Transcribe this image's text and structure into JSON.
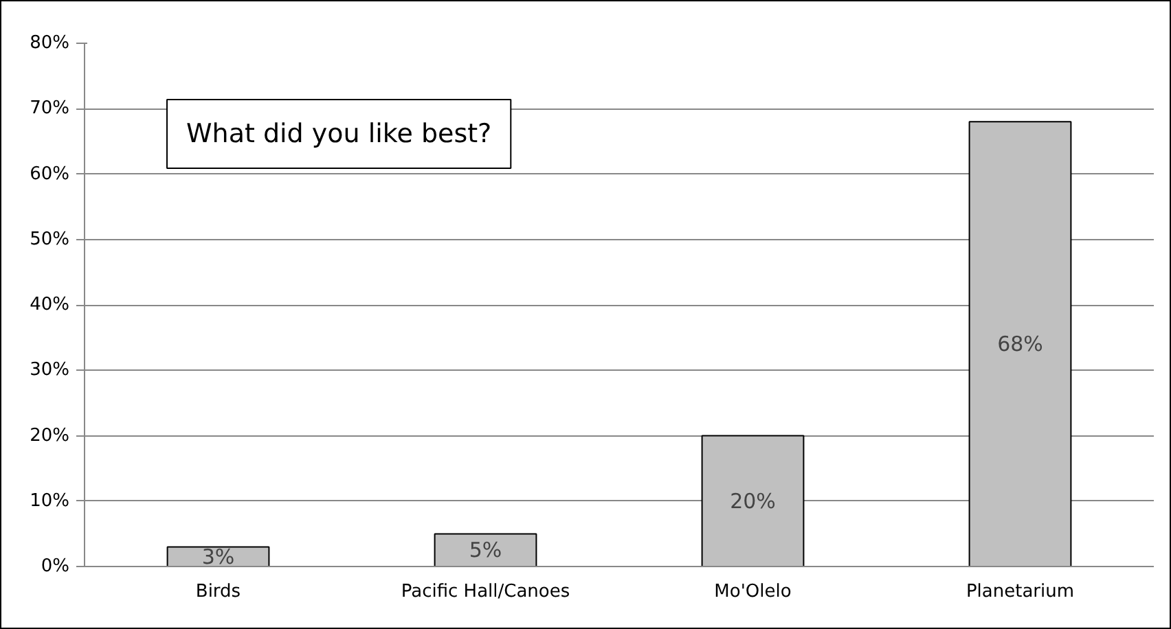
{
  "chart_data": {
    "type": "bar",
    "title": "What did you like best?",
    "categories": [
      "Birds",
      "Pacific Hall/Canoes",
      "Mo'Olelo",
      "Planetarium"
    ],
    "values": [
      3,
      5,
      20,
      68
    ],
    "color": "#c0c0c0",
    "value_labels": [
      "3%",
      "5%",
      "20%",
      "68%"
    ],
    "ylim": [
      0,
      80
    ],
    "yticks": [
      {
        "value": 0,
        "label": "0%"
      },
      {
        "value": 10,
        "label": "10%"
      },
      {
        "value": 20,
        "label": "20%"
      },
      {
        "value": 30,
        "label": "30%"
      },
      {
        "value": 40,
        "label": "40%"
      },
      {
        "value": 50,
        "label": "50%"
      },
      {
        "value": 60,
        "label": "60%"
      },
      {
        "value": 70,
        "label": "70%"
      },
      {
        "value": 80,
        "label": "80%"
      }
    ],
    "grid": "y"
  }
}
